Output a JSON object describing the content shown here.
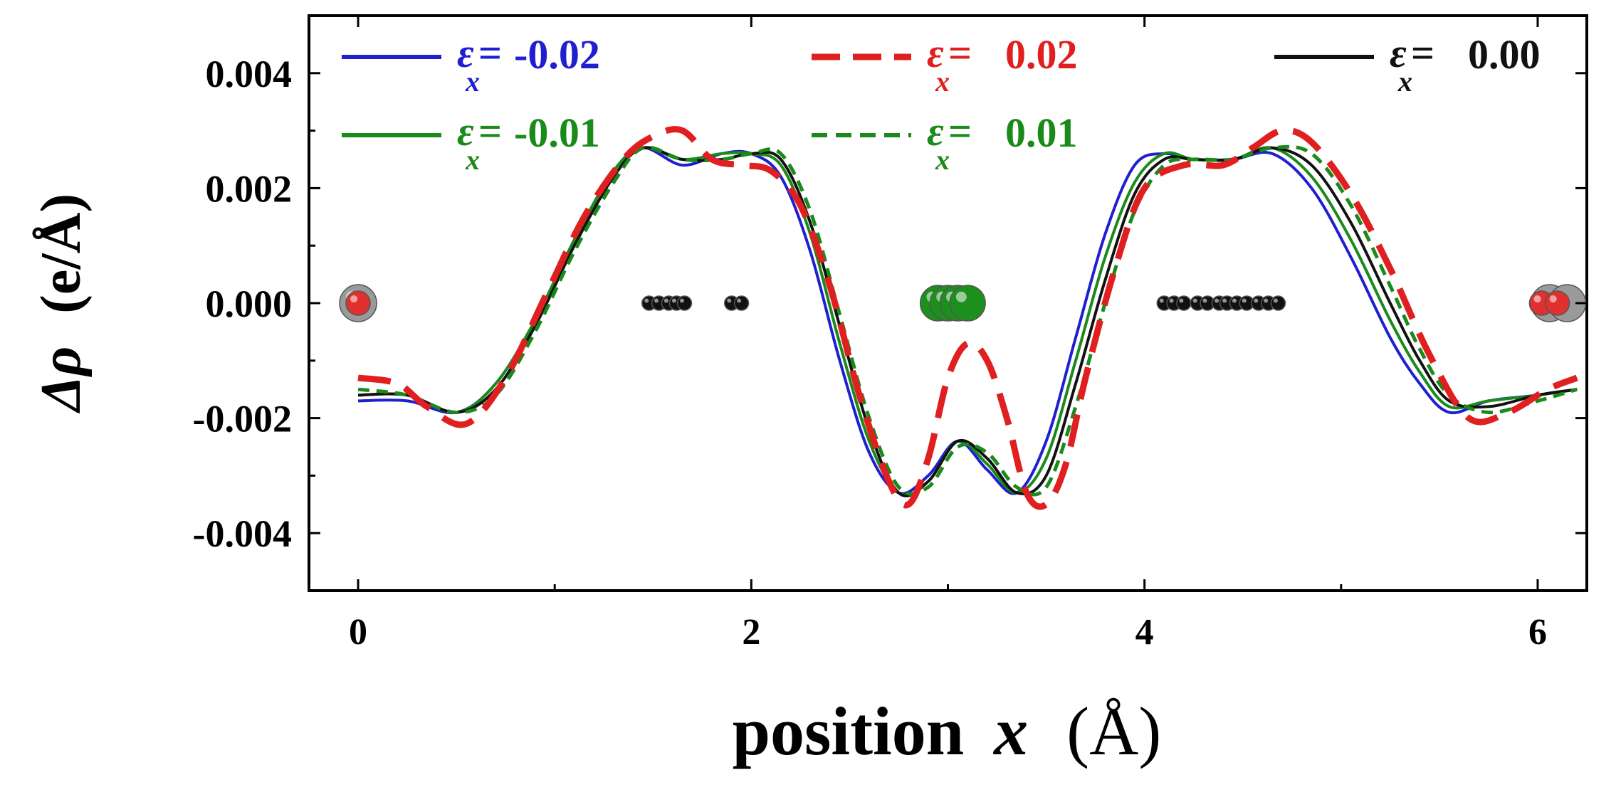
{
  "chart_data": {
    "type": "line",
    "xlabel": "position x  (Å)",
    "xlabel_parts": {
      "word": "position",
      "var": "x",
      "unit": "(Å)"
    },
    "ylabel": "Δρ  (e/Å)",
    "ylabel_parts": {
      "sym": "Δρ",
      "unit": "(e/Å)"
    },
    "xlim": [
      -0.25,
      6.25
    ],
    "ylim": [
      -0.005,
      0.005
    ],
    "xticks": [
      "0",
      "2",
      "4",
      "6"
    ],
    "xtick_values": [
      0,
      2,
      4,
      6
    ],
    "yticks": [
      "0.004",
      "0.002",
      "0.000",
      "-0.002",
      "-0.004"
    ],
    "ytick_values": [
      0.004,
      0.002,
      0.0,
      -0.002,
      -0.004
    ],
    "legend_position": "top",
    "series": [
      {
        "name": "εx= -0.02",
        "sym": "ε",
        "sub": "x",
        "eq": "=",
        "value": "-0.02",
        "color": "#1f1fd0",
        "dash": "solid",
        "x": [
          0.0,
          0.25,
          0.5,
          0.7,
          0.9,
          1.1,
          1.3,
          1.45,
          1.65,
          1.85,
          2.0,
          2.15,
          2.3,
          2.45,
          2.6,
          2.75,
          2.9,
          3.05,
          3.2,
          3.35,
          3.5,
          3.65,
          3.8,
          3.95,
          4.1,
          4.25,
          4.45,
          4.65,
          4.85,
          5.05,
          5.25,
          5.4,
          5.55,
          5.75,
          6.0,
          6.2
        ],
        "y": [
          -0.0017,
          -0.0017,
          -0.0019,
          -0.0014,
          -0.0003,
          0.0011,
          0.0023,
          0.0027,
          0.0024,
          0.0026,
          0.0026,
          0.0022,
          0.0009,
          -0.001,
          -0.0026,
          -0.0033,
          -0.003,
          -0.0024,
          -0.0029,
          -0.0033,
          -0.0024,
          -0.0006,
          0.0012,
          0.0024,
          0.0026,
          0.0025,
          0.0025,
          0.0026,
          0.002,
          0.0008,
          -0.0006,
          -0.0014,
          -0.0019,
          -0.0017,
          -0.0016,
          -0.0015
        ]
      },
      {
        "name": "εx= 0.02",
        "sym": "ε",
        "sub": "x",
        "eq": "=",
        "value": "0.02",
        "color": "#e02020",
        "dash": "dashed",
        "x": [
          0.0,
          0.2,
          0.35,
          0.55,
          0.75,
          0.95,
          1.15,
          1.35,
          1.5,
          1.65,
          1.8,
          1.95,
          2.1,
          2.25,
          2.4,
          2.55,
          2.7,
          2.8,
          2.9,
          3.0,
          3.1,
          3.2,
          3.3,
          3.4,
          3.5,
          3.6,
          3.7,
          3.85,
          4.0,
          4.2,
          4.4,
          4.55,
          4.7,
          4.85,
          5.05,
          5.25,
          5.45,
          5.65,
          5.85,
          6.05,
          6.2
        ],
        "y": [
          -0.0013,
          -0.0014,
          -0.0018,
          -0.0021,
          -0.0013,
          0.0001,
          0.0015,
          0.0025,
          0.0029,
          0.003,
          0.0025,
          0.0024,
          0.0023,
          0.0017,
          0.0003,
          -0.0016,
          -0.0031,
          -0.0035,
          -0.0027,
          -0.0013,
          -0.0007,
          -0.001,
          -0.002,
          -0.0033,
          -0.0035,
          -0.0028,
          -0.0013,
          0.0006,
          0.002,
          0.0024,
          0.0024,
          0.0027,
          0.003,
          0.0028,
          0.0019,
          0.0006,
          -0.0009,
          -0.002,
          -0.0019,
          -0.0015,
          -0.0013
        ]
      },
      {
        "name": "εx= 0.00",
        "sym": "ε",
        "sub": "x",
        "eq": "=",
        "value": "0.00",
        "color": "#111111",
        "dash": "solid",
        "x": [
          0.0,
          0.25,
          0.5,
          0.7,
          0.9,
          1.1,
          1.3,
          1.45,
          1.65,
          1.85,
          2.0,
          2.15,
          2.3,
          2.45,
          2.6,
          2.75,
          2.9,
          3.05,
          3.2,
          3.35,
          3.5,
          3.65,
          3.8,
          3.95,
          4.1,
          4.25,
          4.45,
          4.65,
          4.85,
          5.05,
          5.25,
          5.4,
          5.55,
          5.75,
          6.0,
          6.2
        ],
        "y": [
          -0.0016,
          -0.0016,
          -0.0019,
          -0.0015,
          -0.0004,
          0.001,
          0.0022,
          0.0027,
          0.0025,
          0.0025,
          0.0026,
          0.0025,
          0.0014,
          -0.0004,
          -0.0022,
          -0.0033,
          -0.0031,
          -0.0024,
          -0.0027,
          -0.0033,
          -0.003,
          -0.0014,
          0.0004,
          0.0019,
          0.0025,
          0.0025,
          0.0025,
          0.0027,
          0.0024,
          0.0014,
          0.0,
          -0.001,
          -0.0017,
          -0.0018,
          -0.0016,
          -0.0015
        ]
      },
      {
        "name": "εx= -0.01",
        "sym": "ε",
        "sub": "x",
        "eq": "=",
        "value": "-0.01",
        "color": "#1a8a1a",
        "dash": "solid",
        "x": [
          0.0,
          0.25,
          0.5,
          0.7,
          0.9,
          1.1,
          1.3,
          1.45,
          1.65,
          1.85,
          2.0,
          2.15,
          2.3,
          2.45,
          2.6,
          2.75,
          2.9,
          3.05,
          3.2,
          3.35,
          3.5,
          3.65,
          3.8,
          3.95,
          4.1,
          4.25,
          4.45,
          4.65,
          4.85,
          5.05,
          5.25,
          5.4,
          5.55,
          5.75,
          6.0,
          6.2
        ],
        "y": [
          -0.0016,
          -0.0016,
          -0.0019,
          -0.0014,
          -0.0003,
          0.0011,
          0.0023,
          0.0027,
          0.0025,
          0.0026,
          0.0026,
          0.0024,
          0.0012,
          -0.0007,
          -0.0024,
          -0.0033,
          -0.0031,
          -0.0024,
          -0.0028,
          -0.0033,
          -0.0027,
          -0.001,
          0.0008,
          0.0021,
          0.0026,
          0.0025,
          0.0025,
          0.0027,
          0.0022,
          0.0011,
          -0.0003,
          -0.0012,
          -0.0018,
          -0.0017,
          -0.0016,
          -0.0015
        ]
      },
      {
        "name": "εx= 0.01",
        "sym": "ε",
        "sub": "x",
        "eq": "=",
        "value": "0.01",
        "color": "#1a8a1a",
        "dash": "dashed",
        "x": [
          0.0,
          0.25,
          0.5,
          0.7,
          0.9,
          1.1,
          1.3,
          1.45,
          1.65,
          1.85,
          2.0,
          2.15,
          2.3,
          2.45,
          2.6,
          2.75,
          2.9,
          3.05,
          3.2,
          3.35,
          3.5,
          3.65,
          3.8,
          3.95,
          4.1,
          4.25,
          4.45,
          4.65,
          4.85,
          5.05,
          5.25,
          5.4,
          5.55,
          5.75,
          6.0,
          6.2
        ],
        "y": [
          -0.0015,
          -0.0016,
          -0.0019,
          -0.0016,
          -0.0005,
          0.0009,
          0.0021,
          0.0027,
          0.0025,
          0.0025,
          0.0026,
          0.0026,
          0.0016,
          -0.0002,
          -0.002,
          -0.0032,
          -0.0032,
          -0.0025,
          -0.0026,
          -0.0032,
          -0.0032,
          -0.0018,
          0.0,
          0.0016,
          0.0024,
          0.0025,
          0.0025,
          0.0027,
          0.0026,
          0.0017,
          0.0003,
          -0.0008,
          -0.0016,
          -0.0019,
          -0.0017,
          -0.0015
        ]
      }
    ],
    "atoms": [
      {
        "type": "red-atom",
        "color": "#e03030",
        "x": [
          0.0,
          6.02,
          6.1
        ]
      },
      {
        "type": "gray-atom",
        "color": "#9a9a9a",
        "x": [
          0.0,
          6.06,
          6.15
        ]
      },
      {
        "type": "black-atom",
        "color": "#111111",
        "x": [
          1.48,
          1.53,
          1.58,
          1.62,
          1.66,
          1.9,
          1.95,
          4.1,
          4.15,
          4.2,
          4.27,
          4.32,
          4.38,
          4.42,
          4.47,
          4.52,
          4.58,
          4.63,
          4.68
        ]
      },
      {
        "type": "green-atom",
        "color": "#1d8f1d",
        "x": [
          2.95,
          3.0,
          3.05,
          3.1
        ]
      }
    ]
  }
}
